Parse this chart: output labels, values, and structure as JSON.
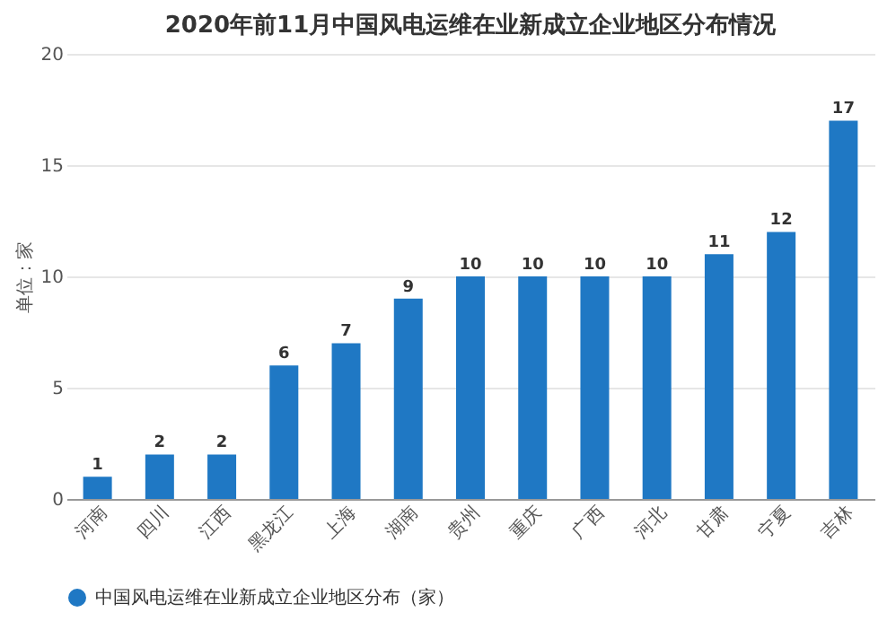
{
  "chart_data": {
    "type": "bar",
    "title": "2020年前11月中国风电运维在业新成立企业地区分布情况",
    "ylabel": "单位：家",
    "categories": [
      "河南",
      "四川",
      "江西",
      "黑龙江",
      "上海",
      "湖南",
      "贵州",
      "重庆",
      "广西",
      "河北",
      "甘肃",
      "宁夏",
      "吉林"
    ],
    "series": [
      {
        "name": "中国风电运维在业新成立企业地区分布（家）",
        "color": "#1f78c4",
        "values": [
          1,
          2,
          2,
          6,
          7,
          9,
          10,
          10,
          10,
          10,
          11,
          12,
          17
        ]
      }
    ],
    "ylim": [
      0,
      20
    ],
    "yticks": [
      0,
      5,
      10,
      15,
      20
    ],
    "grid": "y",
    "legend": "bottom",
    "data_labels": true
  }
}
